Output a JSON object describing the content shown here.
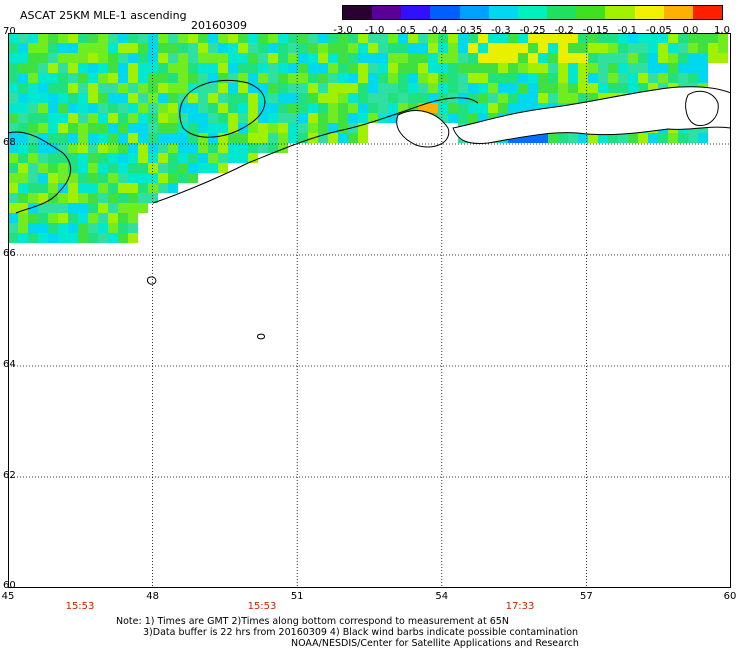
{
  "header": {
    "title": "ASCAT 25KM MLE-1 ascending",
    "date": "20160309"
  },
  "colorbar": {
    "labels": [
      "-3.0",
      "-1.0",
      "-0.5",
      "-0.4",
      "-0.35",
      "-0.3",
      "-0.25",
      "-0.2",
      "-0.15",
      "-0.1",
      "-0.05",
      "0.0",
      "1.0"
    ],
    "colors": [
      "#2a0030",
      "#5a0098",
      "#3010ff",
      "#0060ff",
      "#00a0ff",
      "#00d8f0",
      "#00f0c0",
      "#20e060",
      "#40e020",
      "#a0f000",
      "#f0f000",
      "#ffb000",
      "#ff2000"
    ]
  },
  "axes": {
    "lon_ticks": [
      "45",
      "48",
      "51",
      "54",
      "57",
      "60"
    ],
    "lat_ticks": [
      "70",
      "68",
      "66",
      "64",
      "62",
      "60"
    ],
    "lon_range": [
      45,
      60
    ],
    "lat_range": [
      60,
      70
    ]
  },
  "times": [
    "15:53",
    "15:53",
    "17:33"
  ],
  "notes": [
    "Note: 1) Times are GMT 2)Times along bottom correspond to measurement at 65N",
    "3)Data buffer is 22 hrs from 20160309 4) Black wind barbs indicate possible contamination",
    "NOAA/NESDIS/Center for Satellite Applications and Research"
  ]
}
